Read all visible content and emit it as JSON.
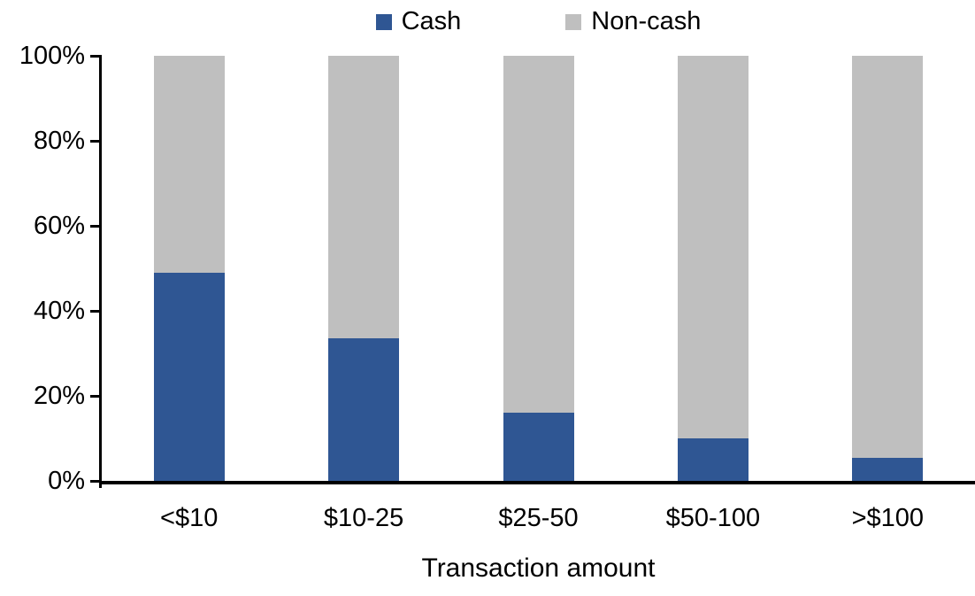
{
  "chart_data": {
    "type": "bar",
    "variant": "stacked-percent-column",
    "title": "",
    "xlabel": "Transaction amount",
    "ylabel": "",
    "categories": [
      "<$10",
      "$10-25",
      "$25-50",
      "$50-100",
      ">$100"
    ],
    "series": [
      {
        "name": "Cash",
        "color": "#2F5693",
        "values": [
          49,
          33.5,
          16,
          10,
          5.5
        ]
      },
      {
        "name": "Non-cash",
        "color": "#BFBFBF",
        "values": [
          51,
          66.5,
          84,
          90,
          94.5
        ]
      }
    ],
    "y_tick_labels": [
      "0%",
      "20%",
      "40%",
      "60%",
      "80%",
      "100%"
    ],
    "ylim": [
      0,
      100
    ],
    "grid": false,
    "legend_position": "top",
    "axis_color": "#000000",
    "text_color": "#000000",
    "background_color": "#FFFFFF"
  }
}
